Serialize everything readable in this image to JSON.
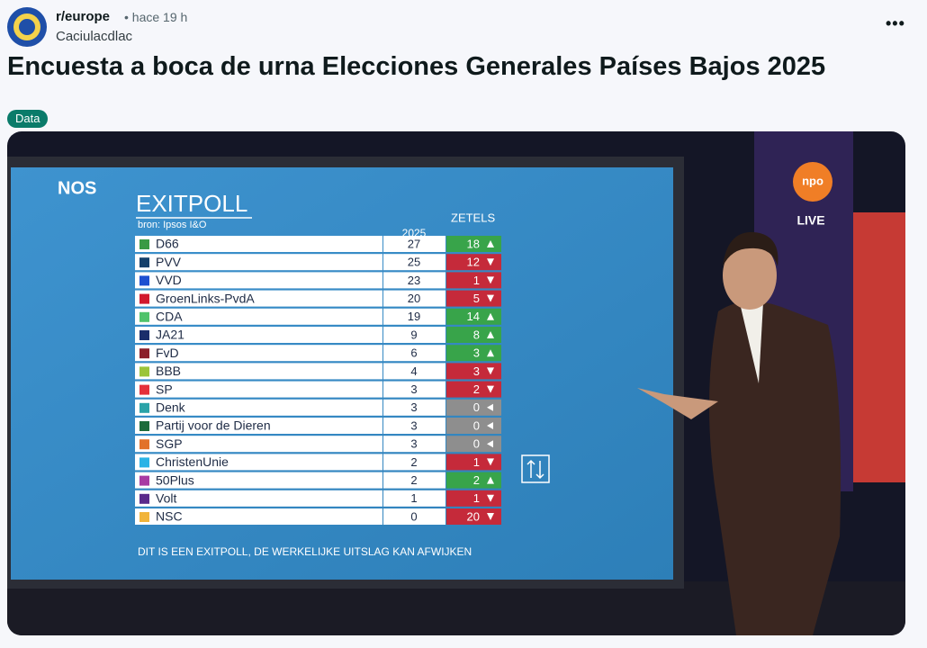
{
  "post": {
    "subreddit": "r/europe",
    "time": "• hace 19 h",
    "user": "Caciulacdlac",
    "title": "Encuesta a boca de urna Elecciones Generales Países Bajos 2025",
    "flair": "Data"
  },
  "image": {
    "broadcaster": "NOS",
    "channel": "npo",
    "live": "LIVE",
    "heading": "EXITPOLL",
    "source": "bron: Ipsos I&O",
    "year_header": "2025",
    "change_header": "ZETELS",
    "footer": "DIT IS EEN EXITPOLL, DE WERKELIJKE UITSLAG KAN AFWIJKEN",
    "rows": [
      {
        "party": "D66",
        "seats": "27",
        "change": "18",
        "trend": "up",
        "color": "#3a9a45"
      },
      {
        "party": "PVV",
        "seats": "25",
        "change": "12",
        "trend": "down",
        "color": "#15406b"
      },
      {
        "party": "VVD",
        "seats": "23",
        "change": "1",
        "trend": "down",
        "color": "#1d4fd1"
      },
      {
        "party": "GroenLinks-PvdA",
        "seats": "20",
        "change": "5",
        "trend": "down",
        "color": "#d2192e"
      },
      {
        "party": "CDA",
        "seats": "19",
        "change": "14",
        "trend": "up",
        "color": "#4fc36b"
      },
      {
        "party": "JA21",
        "seats": "9",
        "change": "8",
        "trend": "up",
        "color": "#1b2e6b"
      },
      {
        "party": "FvD",
        "seats": "6",
        "change": "3",
        "trend": "up",
        "color": "#8b1f2a"
      },
      {
        "party": "BBB",
        "seats": "4",
        "change": "3",
        "trend": "down",
        "color": "#9bc43a"
      },
      {
        "party": "SP",
        "seats": "3",
        "change": "2",
        "trend": "down",
        "color": "#e5303a"
      },
      {
        "party": "Denk",
        "seats": "3",
        "change": "0",
        "trend": "neutral",
        "color": "#2aa3a8"
      },
      {
        "party": "Partij voor de Dieren",
        "seats": "3",
        "change": "0",
        "trend": "neutral",
        "color": "#1d6b3a"
      },
      {
        "party": "SGP",
        "seats": "3",
        "change": "0",
        "trend": "neutral",
        "color": "#e2722a"
      },
      {
        "party": "ChristenUnie",
        "seats": "2",
        "change": "1",
        "trend": "down",
        "color": "#2ab3e6"
      },
      {
        "party": "50Plus",
        "seats": "2",
        "change": "2",
        "trend": "up",
        "color": "#a83aa3"
      },
      {
        "party": "Volt",
        "seats": "1",
        "change": "1",
        "trend": "down",
        "color": "#5a2a8b"
      },
      {
        "party": "NSC",
        "seats": "0",
        "change": "20",
        "trend": "down",
        "color": "#f1b43a"
      }
    ]
  }
}
